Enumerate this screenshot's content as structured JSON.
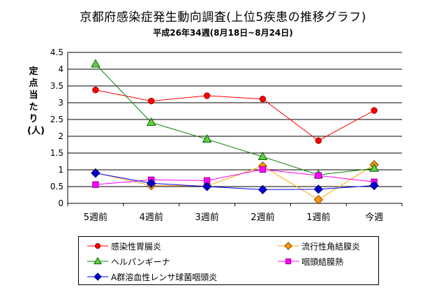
{
  "chart_data": {
    "type": "line",
    "title": "京都府感染症発生動向調査(上位5疾患の推移グラフ)",
    "subtitle": "平成26年34週(8月18日~8月24日)",
    "ylabel": "定点当たり(人)",
    "xlabel": "",
    "categories": [
      "5週前",
      "4週前",
      "3週前",
      "2週前",
      "1週前",
      "今週"
    ],
    "ylim": [
      0,
      4.5
    ],
    "yticks": [
      "0",
      "0.5",
      "1",
      "1.5",
      "2",
      "2.5",
      "3",
      "3.5",
      "4",
      "4.5"
    ],
    "grid": true,
    "legend_position": "bottom",
    "series": [
      {
        "name": "感染性胃腸炎",
        "color": "#ff0000",
        "marker": "circle",
        "marker_fill": "#ff0000",
        "values": [
          3.38,
          3.05,
          3.21,
          3.11,
          1.87,
          2.77
        ]
      },
      {
        "name": "流行性角結膜炎",
        "color": "#ffa500",
        "marker": "diamond",
        "marker_fill": "#ff9900",
        "values": [
          0.91,
          0.53,
          0.52,
          1.11,
          0.11,
          1.15
        ]
      },
      {
        "name": "ヘルパンギーナ",
        "color": "#008000",
        "marker": "triangle",
        "marker_fill": "#66cc44",
        "values": [
          4.15,
          2.41,
          1.91,
          1.39,
          0.85,
          1.04
        ]
      },
      {
        "name": "咽頭結膜熱",
        "color": "#ff00ff",
        "marker": "square",
        "marker_fill": "#ff00ff",
        "values": [
          0.56,
          0.7,
          0.68,
          1.01,
          0.83,
          0.64
        ]
      },
      {
        "name": "A群溶血性レンサ球菌咽頭炎",
        "color": "#0000ff",
        "marker": "diamond",
        "marker_fill": "#0000cc",
        "values": [
          0.9,
          0.6,
          0.5,
          0.41,
          0.42,
          0.53
        ]
      }
    ]
  }
}
